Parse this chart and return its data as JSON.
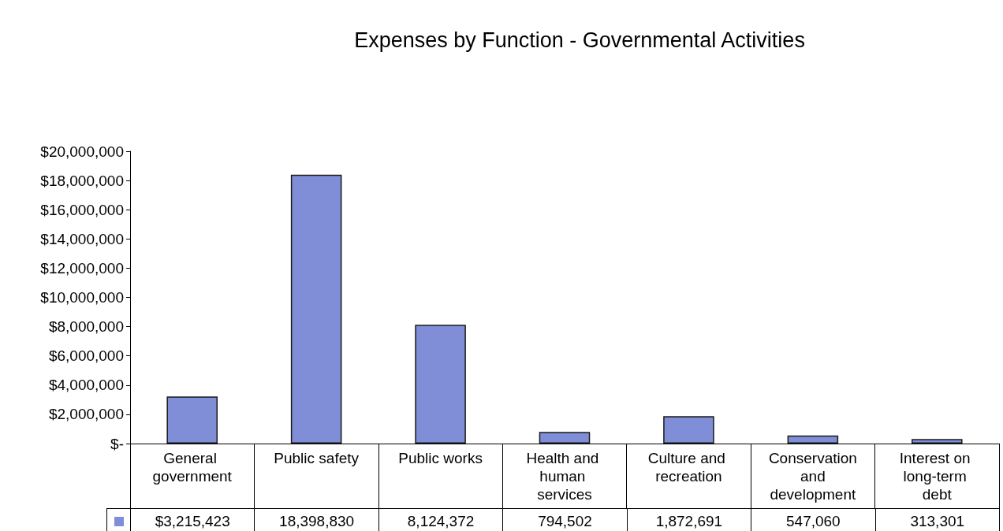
{
  "chart_data": {
    "type": "bar",
    "title": "Expenses by Function - Governmental Activities",
    "categories": [
      "General government",
      "Public safety",
      "Public works",
      "Health and human services",
      "Culture and recreation",
      "Conservation and development",
      "Interest on long-term debt"
    ],
    "values": [
      3215423,
      18398830,
      8124372,
      794502,
      1872691,
      547060,
      313301
    ],
    "value_labels": [
      "$3,215,423",
      "18,398,830",
      "8,124,372",
      "794,502",
      "1,872,691",
      "547,060",
      "313,301"
    ],
    "color": "#7f8ed6",
    "ylim": [
      0,
      20000000
    ],
    "yticks": [
      {
        "value": 0,
        "label": "$-"
      },
      {
        "value": 2000000,
        "label": "$2,000,000"
      },
      {
        "value": 4000000,
        "label": "$4,000,000"
      },
      {
        "value": 6000000,
        "label": "$6,000,000"
      },
      {
        "value": 8000000,
        "label": "$8,000,000"
      },
      {
        "value": 10000000,
        "label": "$10,000,000"
      },
      {
        "value": 12000000,
        "label": "$12,000,000"
      },
      {
        "value": 14000000,
        "label": "$14,000,000"
      },
      {
        "value": 16000000,
        "label": "$16,000,000"
      },
      {
        "value": 18000000,
        "label": "$18,000,000"
      },
      {
        "value": 20000000,
        "label": "$20,000,000"
      }
    ],
    "grid": false
  }
}
